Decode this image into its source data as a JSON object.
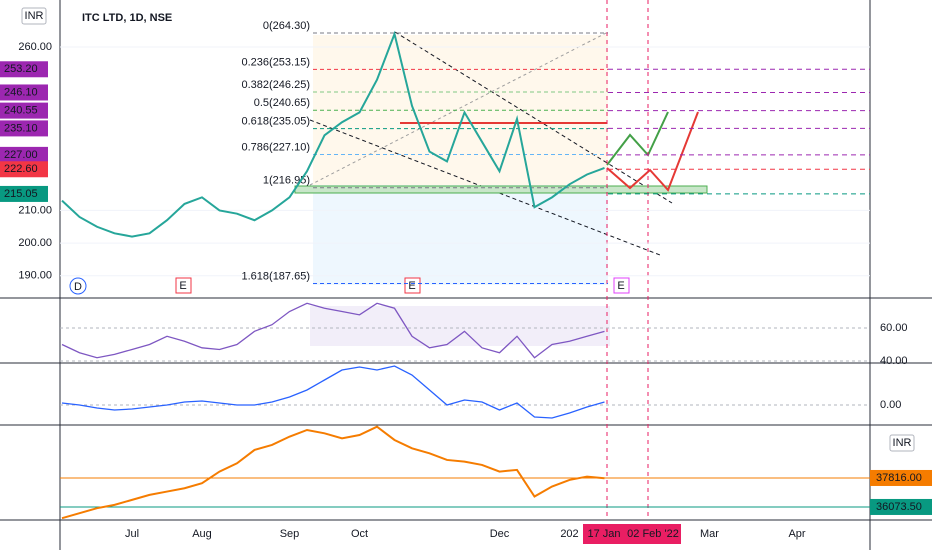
{
  "chart_data": [
    {
      "type": "line",
      "title": "ITC LTD, 1D, NSE",
      "currency": "INR",
      "color": "#26a69a",
      "categories": [
        null,
        null,
        null,
        null,
        "Jul",
        null,
        null,
        null,
        "Aug",
        null,
        null,
        null,
        null,
        "Sep",
        null,
        null,
        null,
        "Oct",
        null,
        null,
        null,
        null,
        null,
        null,
        null,
        "Dec",
        null,
        null,
        null,
        "202",
        null,
        null,
        null,
        null,
        null,
        null,
        null,
        "Mar",
        null,
        null,
        null,
        null,
        "Apr",
        null,
        null,
        null,
        null
      ],
      "values": [
        213,
        208,
        205,
        203,
        202,
        203,
        207,
        212,
        214,
        210,
        209,
        207,
        210,
        214,
        222,
        233,
        237,
        240,
        250,
        264,
        242,
        228,
        225,
        240,
        231,
        222,
        238,
        211,
        214,
        218,
        221,
        223,
        null,
        null,
        null,
        null,
        null,
        null,
        null,
        null,
        null,
        null,
        null,
        null,
        null,
        null,
        null
      ],
      "ylim": [
        183.2,
        274.4
      ],
      "yticks": [
        {
          "value": 190,
          "label": "190.00"
        },
        {
          "value": 200,
          "label": "200.00"
        },
        {
          "value": 210,
          "label": "210.00"
        },
        {
          "value": 260,
          "label": "260.00"
        }
      ],
      "price_labels": [
        {
          "value": 253.2,
          "label": "253.20",
          "color": "#9c27b0"
        },
        {
          "value": 246.1,
          "label": "246.10",
          "color": "#9c27b0"
        },
        {
          "value": 240.55,
          "label": "240.55",
          "color": "#9c27b0"
        },
        {
          "value": 235.1,
          "label": "235.10",
          "color": "#9c27b0"
        },
        {
          "value": 227,
          "label": "227.00",
          "color": "#9c27b0"
        },
        {
          "value": 222.6,
          "label": "222.60",
          "color": "#f23645"
        },
        {
          "value": 215.05,
          "label": "215.05",
          "color": "#089981"
        }
      ],
      "fib_levels": [
        {
          "value": 264.3,
          "label": "0(264.30)",
          "color": "#787b86"
        },
        {
          "value": 253.15,
          "label": "0.236(253.15)",
          "color": "#f23645"
        },
        {
          "value": 246.25,
          "label": "0.382(246.25)",
          "color": "#81c784"
        },
        {
          "value": 240.65,
          "label": "0.5(240.65)",
          "color": "#4caf50"
        },
        {
          "value": 235.05,
          "label": "0.618(235.05)",
          "color": "#089981"
        },
        {
          "value": 227.1,
          "label": "0.786(227.10)",
          "color": "#64b5f6"
        },
        {
          "value": 216.95,
          "label": "1(216.95)",
          "color": "#787b86"
        },
        {
          "value": 187.65,
          "label": "1.618(187.65)",
          "color": "#2962ff"
        }
      ],
      "event_markers": [
        "D",
        "E",
        "E",
        "E"
      ],
      "date_markers": [
        "17 Jan",
        "02 Feb '22"
      ]
    },
    {
      "type": "line",
      "color": "#7e57c2",
      "values": [
        50,
        45,
        42,
        44,
        47,
        50,
        55,
        52,
        48,
        47,
        50,
        58,
        62,
        70,
        75,
        72,
        70,
        68,
        75,
        72,
        55,
        48,
        50,
        58,
        48,
        45,
        55,
        42,
        50,
        52,
        55,
        58,
        null,
        null,
        null,
        null,
        null,
        null,
        null,
        null,
        null,
        null,
        null,
        null,
        null,
        null,
        null
      ],
      "ylim": [
        38.8,
        78.2
      ],
      "yticks": [
        {
          "value": 40,
          "label": "40.00"
        },
        {
          "value": 60,
          "label": "60.00"
        }
      ]
    },
    {
      "type": "line",
      "color": "#2962ff",
      "values": [
        0.2,
        0,
        -0.3,
        -0.5,
        -0.4,
        -0.2,
        0,
        0.3,
        0.4,
        0.2,
        0,
        0,
        0.3,
        0.8,
        1.5,
        2.5,
        3.5,
        3.8,
        3.5,
        3.9,
        3,
        1.5,
        0,
        0.5,
        0.3,
        -0.5,
        0.2,
        -1.2,
        -1.3,
        -0.8,
        -0.2,
        0.3,
        null,
        null,
        null,
        null,
        null,
        null,
        null,
        null,
        null,
        null,
        null,
        null,
        null,
        null,
        null
      ],
      "ylim": [
        -2,
        4.2
      ],
      "yticks": [
        {
          "value": 0,
          "label": "0.00"
        }
      ]
    },
    {
      "type": "line",
      "color": "#f57c00",
      "currency": "INR",
      "values": [
        35400,
        35700,
        36000,
        36200,
        36500,
        36800,
        37000,
        37200,
        37500,
        38200,
        38700,
        39500,
        39800,
        40300,
        40700,
        40500,
        40200,
        40400,
        40900,
        40100,
        39600,
        39300,
        38900,
        38800,
        38600,
        38200,
        38300,
        36700,
        37300,
        37700,
        37900,
        37800,
        null,
        null,
        null,
        null,
        null,
        null,
        null,
        null,
        null,
        null,
        null,
        null,
        null,
        null,
        null
      ],
      "ylim": [
        35290,
        41000
      ],
      "price_labels": [
        {
          "value": 37816,
          "label": "37816.00",
          "color": "#f57c00"
        },
        {
          "value": 36073.5,
          "label": "36073.50",
          "color": "#089981"
        }
      ]
    }
  ]
}
